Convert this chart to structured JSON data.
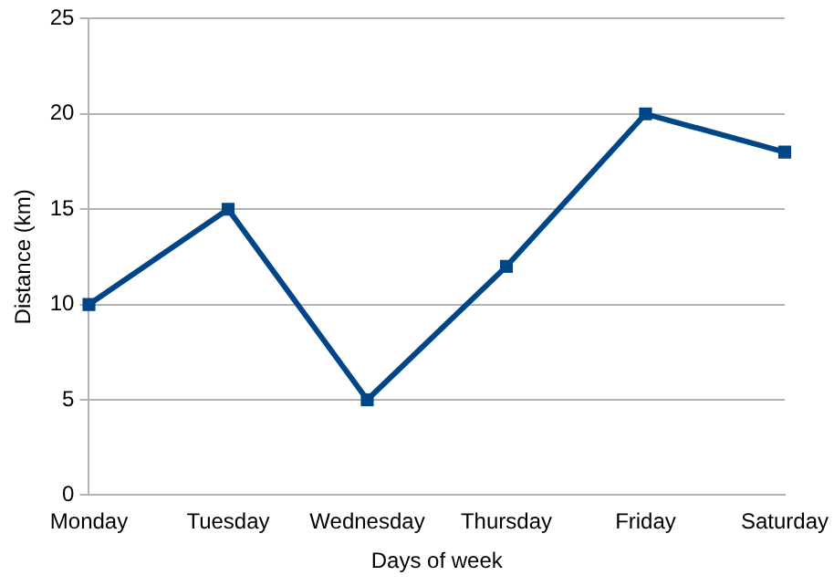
{
  "chart_data": {
    "type": "line",
    "xlabel": "Days of week",
    "ylabel": "Distance (km)",
    "categories": [
      "Monday",
      "Tuesday",
      "Wednesday",
      "Thursday",
      "Friday",
      "Saturday"
    ],
    "series": [
      {
        "color": "#004586",
        "values": [
          10,
          15,
          5,
          12,
          20,
          18
        ]
      }
    ],
    "ylim": [
      0,
      25
    ],
    "yticks": [
      0,
      5,
      10,
      15,
      20,
      25
    ],
    "grid": "y",
    "marker": "square",
    "line_style": "solid",
    "legend": false
  }
}
